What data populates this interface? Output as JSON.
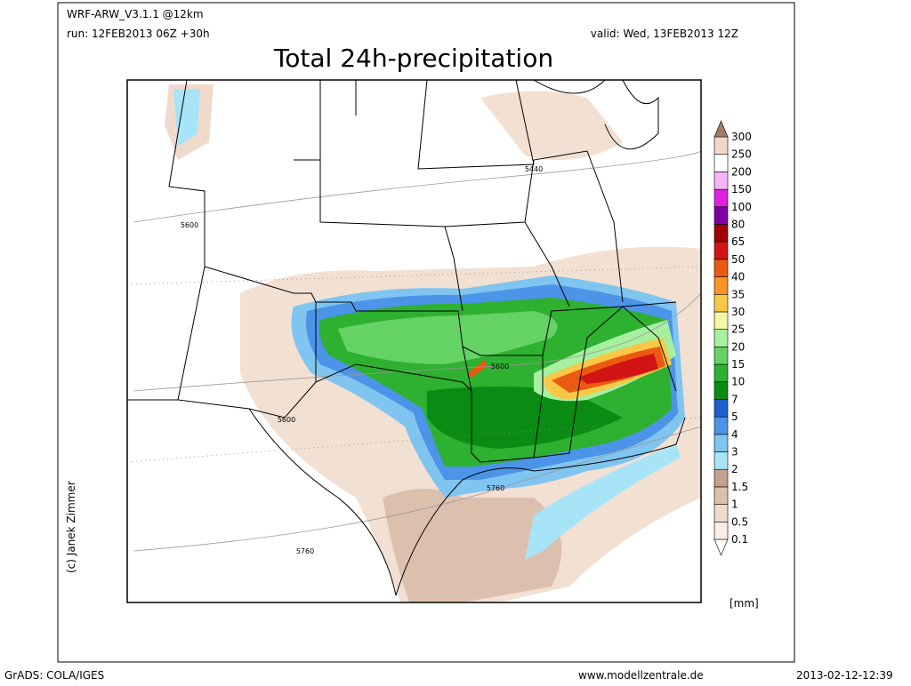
{
  "header": {
    "model": "WRF-ARW_V3.1.1 @12km",
    "run": "run: 12FEB2013 06Z +30h",
    "valid": "valid: Wed, 13FEB2013 12Z",
    "title": "Total 24h-precipitation"
  },
  "colorbar": {
    "ticks": [
      0.1,
      0.5,
      1,
      1.5,
      2,
      3,
      4,
      5,
      7,
      10,
      15,
      20,
      25,
      30,
      35,
      40,
      50,
      65,
      80,
      100,
      150,
      200,
      250,
      300
    ],
    "colors": [
      "#ffffff",
      "#fbeee4",
      "#efdacb",
      "#dcc0ae",
      "#c4a08e",
      "#a8e4f8",
      "#80c4f0",
      "#4c94e8",
      "#1f5fd0",
      "#0a8c14",
      "#2eb030",
      "#64d264",
      "#a6f0a0",
      "#f6f6a4",
      "#f8c846",
      "#f89428",
      "#ea5a10",
      "#d21414",
      "#a00000",
      "#8000a8",
      "#e020e0",
      "#f8b4f8",
      "#ffffff",
      "#efd8c8",
      "#a07c68"
    ],
    "unit": "[mm]"
  },
  "contour_labels": [
    "5440",
    "5600",
    "5600",
    "5600",
    "5760",
    "5760"
  ],
  "credit": "(c) Janek Zimmer",
  "footer": {
    "software": "GrADS: COLA/IGES",
    "website": "www.modellzentrale.de",
    "timestamp": "2013-02-12-12:39"
  }
}
